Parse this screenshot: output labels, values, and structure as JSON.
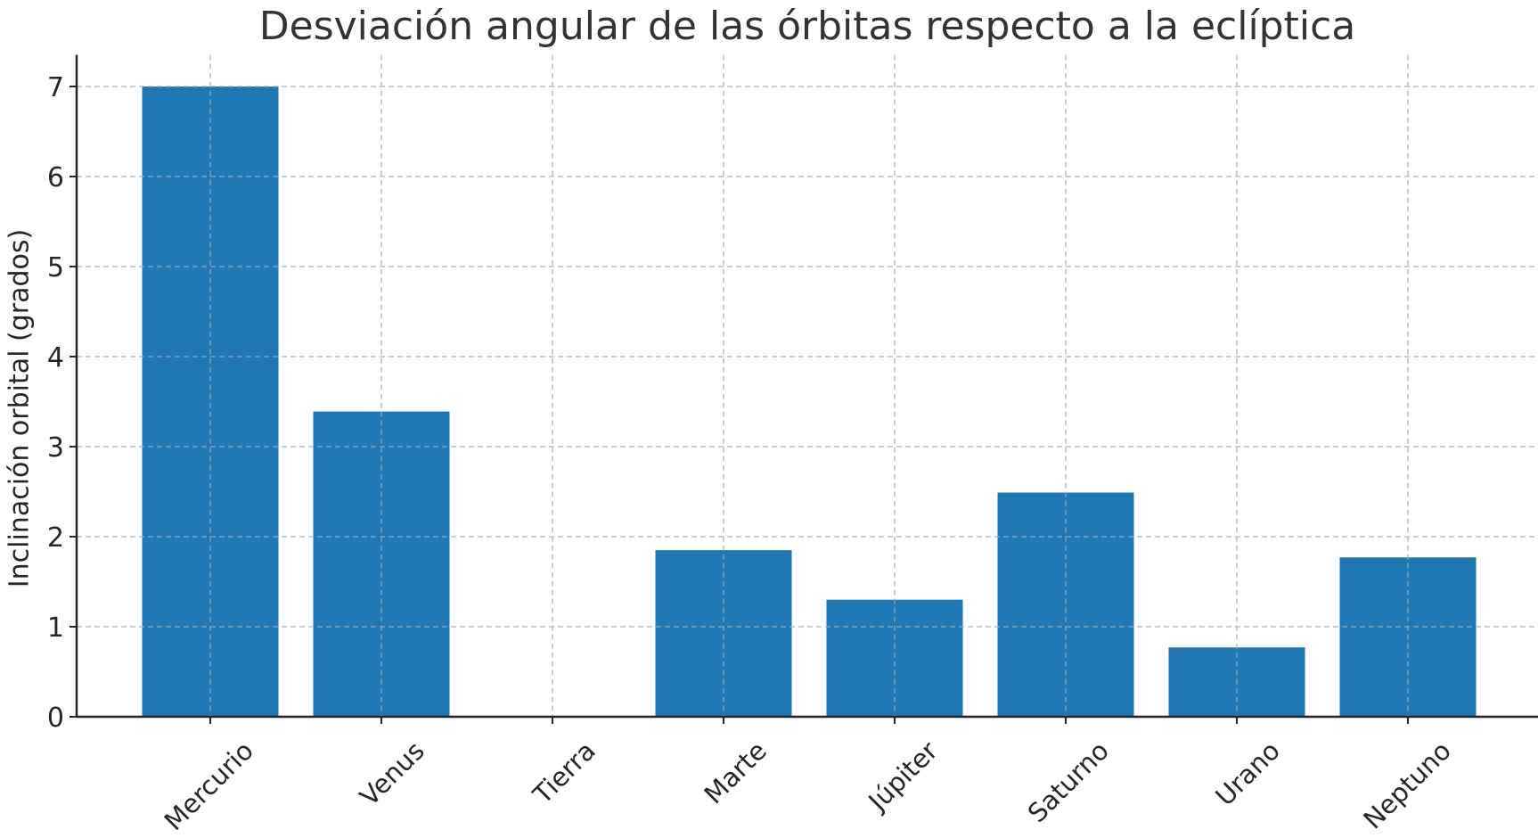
{
  "chart_data": {
    "type": "bar",
    "title": "Desviación angular de las órbitas respecto a la eclíptica",
    "xlabel": "",
    "ylabel": "Inclinación orbital (grados)",
    "categories": [
      "Mercurio",
      "Venus",
      "Tierra",
      "Marte",
      "Júpiter",
      "Saturno",
      "Urano",
      "Neptuno"
    ],
    "values": [
      7.0,
      3.39,
      0.0,
      1.85,
      1.3,
      2.49,
      0.77,
      1.77
    ],
    "yticks": [
      0,
      1,
      2,
      3,
      4,
      5,
      6,
      7
    ],
    "ylim": [
      0,
      7.35
    ],
    "grid": true,
    "grid_style": "dashed",
    "legend": null,
    "bar_color": "#1f77b4",
    "xtick_rotation": -45
  }
}
